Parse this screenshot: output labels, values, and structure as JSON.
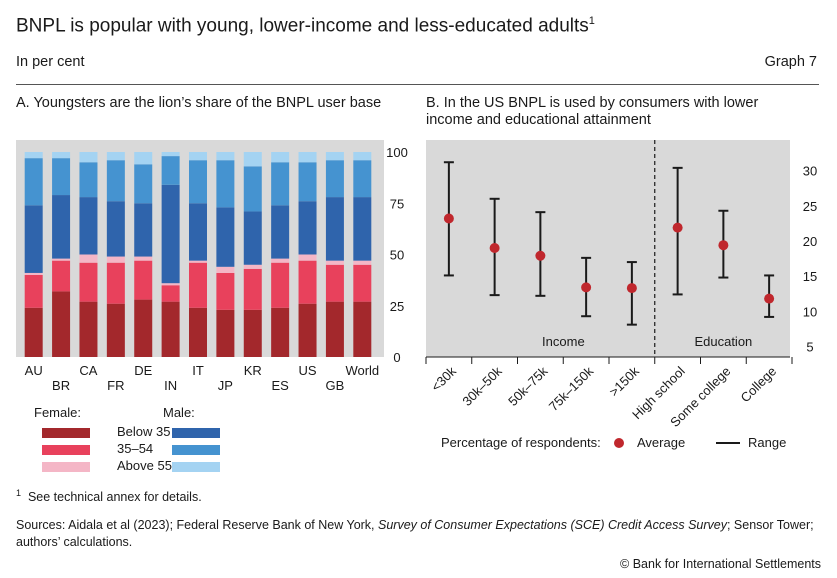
{
  "header": {
    "title": "BNPL is popular with young, lower-income and less-educated adults",
    "title_sup": "1",
    "subtitle": "In per cent",
    "graph_number": "Graph 7"
  },
  "panel_a": {
    "title": "A. Youngsters are the lion’s share of the BNPL user base"
  },
  "panel_b": {
    "title": "B. In the US BNPL is used by consumers with lower income and educational attainment"
  },
  "legend_a": {
    "female_title": "Female:",
    "male_title": "Male:",
    "groups": [
      "Below 35",
      "35–54",
      "Above 55"
    ]
  },
  "legend_b": {
    "prefix": "Percentage of respondents:",
    "average": "Average",
    "range": "Range"
  },
  "footnote": {
    "marker": "1",
    "text": "See technical annex for details."
  },
  "sources": {
    "part1": "Sources: Aidala et al (2023); Federal Reserve Bank of New York, ",
    "italic": "Survey of Consumer Expectations (SCE) Credit Access Survey",
    "part2": "; Sensor Tower; authors’ calculations."
  },
  "copyright": "© Bank for International Settlements",
  "colors": {
    "f_below35": "#a3282c",
    "f_35_54": "#e8415c",
    "f_above55": "#f4b6c6",
    "m_below35": "#2f64ac",
    "m_35_54": "#4593d0",
    "m_above55": "#a4d3f2",
    "panel_bg": "#d9d9d9",
    "dot": "#c0272d"
  },
  "chart_data": [
    {
      "type": "bar",
      "stacked": true,
      "title": "A. Youngsters are the lion’s share of the BNPL user base",
      "categories": [
        "AU",
        "BR",
        "CA",
        "FR",
        "DE",
        "IN",
        "IT",
        "JP",
        "KR",
        "ES",
        "US",
        "GB",
        "World"
      ],
      "ylim": [
        0,
        100
      ],
      "yticks": [
        0,
        25,
        50,
        75,
        100
      ],
      "y_axis_side": "right",
      "series": [
        {
          "name": "Female: Below 35",
          "values": [
            24,
            32,
            27,
            26,
            28,
            27,
            24,
            23,
            23,
            24,
            26,
            27,
            27
          ]
        },
        {
          "name": "Female: 35–54",
          "values": [
            16,
            15,
            19,
            20,
            19,
            8,
            22,
            18,
            20,
            22,
            21,
            18,
            18
          ]
        },
        {
          "name": "Female: Above 55",
          "values": [
            1,
            1,
            4,
            3,
            2,
            1,
            1,
            3,
            2,
            2,
            3,
            2,
            2
          ]
        },
        {
          "name": "Male: Below 35",
          "values": [
            33,
            31,
            28,
            27,
            26,
            48,
            28,
            29,
            26,
            26,
            26,
            31,
            31
          ]
        },
        {
          "name": "Male: 35–54",
          "values": [
            23,
            18,
            17,
            20,
            19,
            14,
            21,
            23,
            22,
            21,
            19,
            18,
            18
          ]
        },
        {
          "name": "Male: Above 55",
          "values": [
            3,
            3,
            5,
            4,
            6,
            2,
            4,
            4,
            7,
            5,
            5,
            4,
            4
          ]
        }
      ]
    },
    {
      "type": "scatter",
      "title": "B. In the US BNPL is used by consumers with lower income and educational attainment",
      "categories": [
        "<30k",
        "30k–50k",
        "50k–75k",
        "75k–150k",
        ">150k",
        "High school",
        "Some college",
        "College"
      ],
      "groups": [
        {
          "name": "Income",
          "categories": [
            "<30k",
            "30k–50k",
            "50k–75k",
            "75k–150k",
            ">150k"
          ]
        },
        {
          "name": "Education",
          "categories": [
            "High school",
            "Some college",
            "College"
          ]
        }
      ],
      "ylim": [
        3.5,
        35.5
      ],
      "yticks": [
        5,
        10,
        15,
        20,
        25,
        30
      ],
      "y_axis_side": "right",
      "series": [
        {
          "name": "Average",
          "values": [
            23.2,
            19.0,
            17.9,
            13.4,
            13.3,
            21.9,
            19.4,
            11.8
          ]
        },
        {
          "name": "Range",
          "low": [
            15.1,
            12.3,
            12.2,
            9.3,
            8.1,
            12.4,
            14.8,
            9.2
          ],
          "high": [
            31.2,
            26.0,
            24.1,
            17.6,
            17.0,
            30.4,
            24.3,
            15.1
          ]
        }
      ]
    }
  ]
}
